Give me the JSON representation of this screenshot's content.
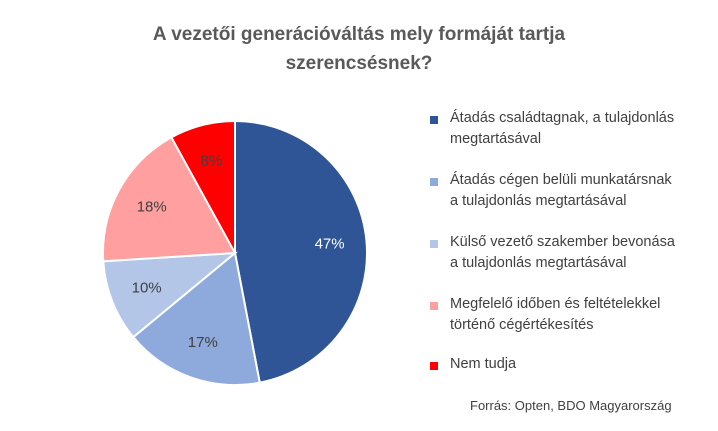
{
  "chart_data": {
    "type": "pie",
    "title_lines": [
      "A vezetői generációváltás mely formáját tartja",
      "szerencsésnek?"
    ],
    "slices": [
      {
        "label": "Átadás családtagnak, a tulajdonlás megtartásával",
        "label_lines": [
          "Átadás családtagnak, a tulajdonlás",
          "megtartásával"
        ],
        "value": 47,
        "data_label": "47%",
        "color": "#2F5597"
      },
      {
        "label": "Átadás cégen belüli munkatársnak a tulajdonlás megtartásával",
        "label_lines": [
          "Átadás cégen belüli munkatársnak",
          "a tulajdonlás megtartásával"
        ],
        "value": 17,
        "data_label": "17%",
        "color": "#8EA9DB"
      },
      {
        "label": "Külső vezető szakember bevonása a tulajdonlás megtartásával",
        "label_lines": [
          "Külső vezető szakember bevonása",
          "a tulajdonlás megtartásával"
        ],
        "value": 10,
        "data_label": "10%",
        "color": "#B4C6E7"
      },
      {
        "label": "Megfelelő időben és feltételekkel történő cégértékesítés",
        "label_lines": [
          "Megfelelő időben és feltételekkel",
          "történő cégértékesítés"
        ],
        "value": 18,
        "data_label": "18%",
        "color": "#FF9F9F"
      },
      {
        "label": "Nem tudja",
        "label_lines": [
          "Nem tudja"
        ],
        "value": 8,
        "data_label": "8%",
        "color": "#FF0000"
      }
    ],
    "legend_position": "right",
    "source": "Forrás: Opten, BDO Magyarország"
  }
}
